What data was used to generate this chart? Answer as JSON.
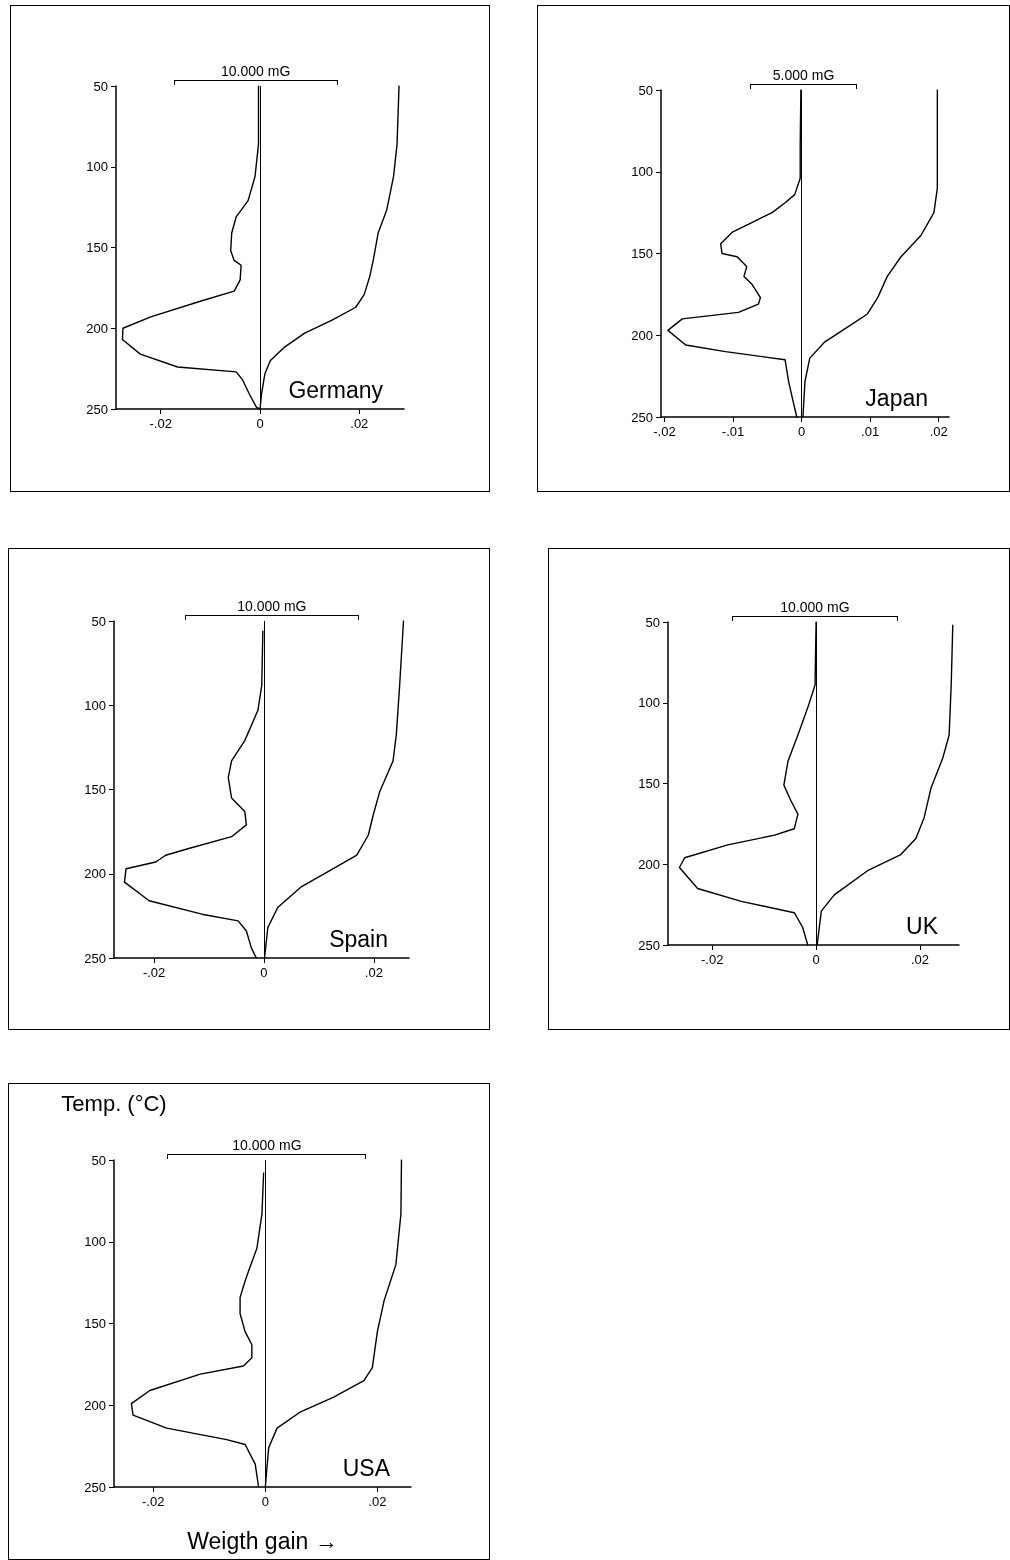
{
  "chart_data": [
    {
      "type": "line",
      "title": "Germany",
      "annotations": [
        "10.000 mG"
      ],
      "marker": "none",
      "xlim": [
        -0.029,
        0.029
      ],
      "xticks": [
        {
          "value": -0.02,
          "label": "-.02"
        },
        {
          "value": 0,
          "label": "0"
        },
        {
          "value": 0.02,
          "label": ".02"
        }
      ],
      "ylim": [
        250,
        50
      ],
      "yticks": [
        50,
        100,
        150,
        200,
        250
      ],
      "ref_lines": [
        {
          "axis": "x",
          "value": 0,
          "color": "#000000"
        }
      ],
      "series": [
        {
          "color": "#000000",
          "x": [
            -0.0003,
            -0.0003,
            -0.001,
            -0.0024,
            -0.0048,
            -0.0057,
            -0.0059,
            -0.0052,
            -0.0038,
            -0.004,
            -0.0052,
            -0.0117,
            -0.022,
            -0.0276,
            -0.0277,
            -0.0241,
            -0.0166,
            -0.0048,
            -0.0035,
            -0.0021,
            -0.0007,
            0
          ],
          "values": [
            50,
            86,
            106,
            121,
            131,
            141,
            152,
            158,
            161,
            170,
            177,
            183,
            193,
            200,
            207,
            216,
            224,
            227,
            232,
            241,
            249,
            250
          ]
        },
        {
          "color": "#000000",
          "x": [
            0.028,
            0.0276,
            0.0269,
            0.0255,
            0.0238,
            0.0228,
            0.0221,
            0.021,
            0.0193,
            0.0145,
            0.009,
            0.0048,
            0.0021,
            0.001,
            0.0003,
            0
          ],
          "values": [
            50,
            86,
            106,
            127,
            141,
            158,
            168,
            179,
            187,
            195,
            203,
            212,
            220,
            228,
            241,
            250
          ]
        }
      ]
    },
    {
      "type": "line",
      "title": "Japan",
      "annotations": [
        "5.000 mG"
      ],
      "marker": "none",
      "xlim": [
        -0.0205,
        0.0215
      ],
      "xticks": [
        {
          "value": -0.02,
          "label": "-.02"
        },
        {
          "value": -0.01,
          "label": "-.01"
        },
        {
          "value": 0,
          "label": "0"
        },
        {
          "value": 0.01,
          "label": ".01"
        },
        {
          "value": 0.02,
          "label": ".02"
        }
      ],
      "ylim": [
        250,
        50
      ],
      "yticks": [
        50,
        100,
        150,
        200,
        250
      ],
      "ref_lines": [
        {
          "axis": "x",
          "value": 0,
          "color": "#000000"
        }
      ],
      "series": [
        {
          "color": "#000000",
          "x": [
            -0.0001,
            -0.0002,
            -0.0002,
            -0.001,
            -0.0024,
            -0.0043,
            -0.0077,
            -0.0101,
            -0.0118,
            -0.0116,
            -0.0094,
            -0.008,
            -0.0084,
            -0.0072,
            -0.006,
            -0.0063,
            -0.0092,
            -0.0174,
            -0.0195,
            -0.0169,
            -0.0111,
            -0.0024,
            -0.0019,
            -0.0012,
            -0.0007
          ],
          "values": [
            50,
            84,
            104,
            114,
            119,
            125,
            132,
            137,
            144,
            150,
            152,
            158,
            164,
            169,
            177,
            181,
            186,
            190,
            197,
            206,
            210,
            215,
            228,
            241,
            250
          ]
        },
        {
          "color": "#000000",
          "x": [
            0.0198,
            0.0198,
            0.0193,
            0.0174,
            0.0145,
            0.0125,
            0.0111,
            0.0096,
            0.0067,
            0.0034,
            0.0012,
            0.0005,
            0.0002
          ],
          "values": [
            50,
            110,
            125,
            139,
            152,
            164,
            177,
            187,
            195,
            204,
            214,
            228,
            250
          ]
        }
      ]
    },
    {
      "type": "line",
      "title": "Spain",
      "annotations": [
        "10.000 mG"
      ],
      "marker": "none",
      "xlim": [
        -0.0273,
        0.0264
      ],
      "xticks": [
        {
          "value": -0.02,
          "label": "-.02"
        },
        {
          "value": 0,
          "label": "0"
        },
        {
          "value": 0.02,
          "label": ".02"
        }
      ],
      "ylim": [
        250,
        50
      ],
      "yticks": [
        50,
        100,
        150,
        200,
        250
      ],
      "ref_lines": [
        {
          "axis": "x",
          "value": 0,
          "color": "#000000"
        }
      ],
      "series": [
        {
          "color": "#000000",
          "x": [
            -0.0002,
            -0.0004,
            -0.0011,
            -0.0035,
            -0.0059,
            -0.0065,
            -0.0059,
            -0.0035,
            -0.0032,
            -0.0059,
            -0.0137,
            -0.0179,
            -0.0197,
            -0.0251,
            -0.0254,
            -0.0209,
            -0.0113,
            -0.0047,
            -0.0032,
            -0.0023,
            -0.0014
          ],
          "values": [
            56,
            88,
            103,
            121,
            133,
            143,
            155,
            163,
            171,
            178,
            185,
            189,
            193,
            197,
            205,
            216,
            224,
            228,
            234,
            244,
            250
          ]
        },
        {
          "color": "#000000",
          "x": [
            0.0254,
            0.0247,
            0.0241,
            0.0235,
            0.0211,
            0.0199,
            0.019,
            0.0169,
            0.0115,
            0.0067,
            0.0025,
            0.0007,
            0.0001
          ],
          "values": [
            50,
            88,
            117,
            133,
            151,
            165,
            177,
            189,
            199,
            208,
            220,
            232,
            250
          ]
        }
      ]
    },
    {
      "type": "line",
      "title": "UK",
      "annotations": [
        "10.000 mG"
      ],
      "marker": "none",
      "xlim": [
        -0.0285,
        0.0275
      ],
      "xticks": [
        {
          "value": -0.02,
          "label": "-.02"
        },
        {
          "value": 0,
          "label": "0"
        },
        {
          "value": 0.02,
          "label": ".02"
        }
      ],
      "ylim": [
        250,
        50
      ],
      "yticks": [
        50,
        100,
        150,
        200,
        250
      ],
      "ref_lines": [
        {
          "axis": "x",
          "value": 0,
          "color": "#000000"
        }
      ],
      "series": [
        {
          "color": "#000000",
          "x": [
            0,
            -0.0002,
            -0.0016,
            -0.0035,
            -0.0054,
            -0.0062,
            -0.0048,
            -0.0035,
            -0.0042,
            -0.008,
            -0.017,
            -0.0253,
            -0.0263,
            -0.0228,
            -0.0144,
            -0.0042,
            -0.0026,
            -0.0016
          ],
          "values": [
            50,
            89,
            103,
            120,
            136,
            151,
            161,
            169,
            178,
            182,
            188,
            196,
            202,
            215,
            223,
            230,
            239,
            250
          ]
        },
        {
          "color": "#000000",
          "x": [
            0.0263,
            0.026,
            0.0256,
            0.0244,
            0.0221,
            0.0208,
            0.0192,
            0.0163,
            0.0099,
            0.0035,
            0.001,
            0.0002
          ],
          "values": [
            52,
            89,
            120,
            134,
            153,
            171,
            184,
            194,
            204,
            219,
            229,
            250
          ]
        }
      ]
    },
    {
      "type": "line",
      "title": "USA",
      "xlabel": "Weigth gain →",
      "ylabel": "Temp. (°C)",
      "annotations": [
        "10.000 mG"
      ],
      "marker": "none",
      "xlim": [
        -0.027,
        0.026
      ],
      "xticks": [
        {
          "value": -0.02,
          "label": "-.02"
        },
        {
          "value": 0,
          "label": "0"
        },
        {
          "value": 0.02,
          "label": ".02"
        }
      ],
      "ylim": [
        250,
        50
      ],
      "yticks": [
        50,
        100,
        150,
        200,
        250
      ],
      "ref_lines": [
        {
          "axis": "x",
          "value": 0,
          "color": "#000000"
        }
      ],
      "series": [
        {
          "color": "#000000",
          "x": [
            -0.0003,
            -0.0006,
            -0.0015,
            -0.003,
            -0.0036,
            -0.0045,
            -0.0045,
            -0.0036,
            -0.0024,
            -0.0024,
            -0.0039,
            -0.0116,
            -0.0206,
            -0.0239,
            -0.0236,
            -0.0176,
            -0.0069,
            -0.0036,
            -0.0018,
            -0.0012
          ],
          "values": [
            58,
            83,
            104,
            118,
            124,
            134,
            144,
            155,
            163,
            171,
            176,
            181,
            191,
            199,
            206,
            214,
            221,
            224,
            236,
            250
          ]
        },
        {
          "color": "#000000",
          "x": [
            0.0243,
            0.0242,
            0.0233,
            0.0212,
            0.02,
            0.0191,
            0.0176,
            0.0122,
            0.0063,
            0.0021,
            0.0006,
            0
          ],
          "values": [
            50,
            83,
            114,
            136,
            155,
            177,
            185,
            195,
            204,
            214,
            226,
            250
          ]
        }
      ]
    }
  ]
}
